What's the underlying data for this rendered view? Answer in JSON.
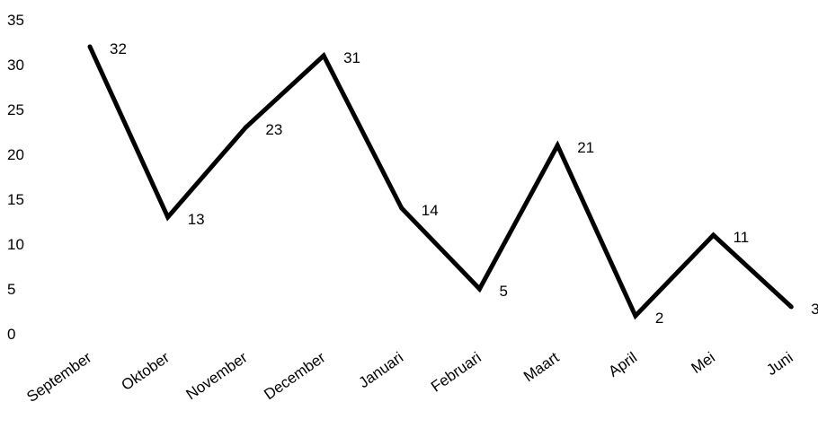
{
  "chart_data": {
    "type": "line",
    "title": "",
    "xlabel": "",
    "ylabel": "",
    "categories": [
      "September",
      "Oktober",
      "November",
      "December",
      "Januari",
      "Februari",
      "Maart",
      "April",
      "Mei",
      "Juni"
    ],
    "series": [
      {
        "values": [
          32,
          13,
          23,
          31,
          14,
          5,
          21,
          2,
          11,
          3
        ],
        "color": "#000000"
      }
    ],
    "ylim": [
      0,
      35
    ],
    "yticks": [
      0,
      5,
      10,
      15,
      20,
      25,
      30,
      35
    ],
    "grid": false,
    "legend": "none",
    "data_labels": true
  }
}
